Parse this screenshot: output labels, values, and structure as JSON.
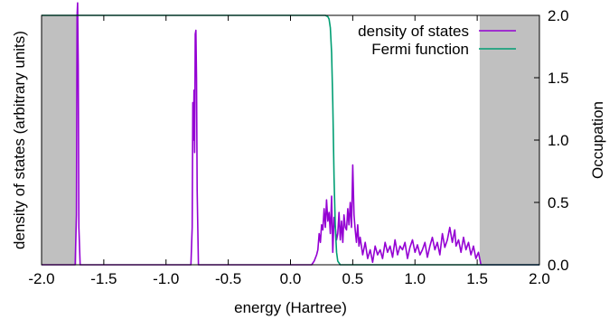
{
  "chart_data": {
    "type": "line",
    "title": "",
    "xlabel": "energy (Hartree)",
    "ylabel_left": "density of states (arbitrary units)",
    "ylabel_right": "Occupation",
    "xlim": [
      -2.0,
      2.0
    ],
    "ylim_right": [
      0.0,
      2.0
    ],
    "x_ticks": [
      "-2.0",
      "-1.5",
      "-1.0",
      "-0.5",
      "0.0",
      "0.5",
      "1.0",
      "1.5",
      "2.0"
    ],
    "y_right_ticks": [
      "0.0",
      "0.5",
      "1.0",
      "1.5",
      "2.0"
    ],
    "legend_position": "top-right",
    "grid": false,
    "shaded_regions": [
      {
        "x0": -2.0,
        "x1": -1.72,
        "color": "#c0c0c0"
      },
      {
        "x0": 1.52,
        "x1": 2.0,
        "color": "#c0c0c0"
      }
    ],
    "series": [
      {
        "name": "density of states",
        "color": "#9400d3",
        "axis": "right",
        "x": [
          -2.0,
          -1.73,
          -1.72,
          -1.715,
          -1.71,
          -1.705,
          -1.7,
          -1.69,
          -0.8,
          -0.79,
          -0.785,
          -0.78,
          -0.775,
          -0.77,
          -0.765,
          -0.76,
          -0.755,
          -0.75,
          -0.74,
          0.17,
          0.19,
          0.21,
          0.22,
          0.23,
          0.24,
          0.25,
          0.26,
          0.27,
          0.28,
          0.29,
          0.3,
          0.31,
          0.32,
          0.33,
          0.34,
          0.35,
          0.36,
          0.37,
          0.38,
          0.39,
          0.4,
          0.41,
          0.42,
          0.43,
          0.44,
          0.45,
          0.46,
          0.47,
          0.48,
          0.49,
          0.5,
          0.51,
          0.52,
          0.53,
          0.54,
          0.55,
          0.56,
          0.58,
          0.6,
          0.62,
          0.64,
          0.66,
          0.68,
          0.7,
          0.72,
          0.74,
          0.76,
          0.78,
          0.8,
          0.82,
          0.84,
          0.86,
          0.88,
          0.9,
          0.92,
          0.94,
          0.96,
          0.98,
          1.0,
          1.02,
          1.04,
          1.06,
          1.08,
          1.1,
          1.12,
          1.14,
          1.16,
          1.18,
          1.2,
          1.22,
          1.24,
          1.26,
          1.28,
          1.3,
          1.32,
          1.33,
          1.35,
          1.37,
          1.39,
          1.41,
          1.43,
          1.45,
          1.47,
          1.49,
          1.51,
          1.53,
          2.0
        ],
        "y": [
          0.0,
          0.0,
          0.4,
          2.0,
          2.1,
          1.6,
          0.3,
          0.0,
          0.0,
          0.3,
          1.3,
          1.0,
          1.4,
          0.9,
          1.85,
          1.88,
          1.5,
          0.6,
          0.0,
          0.0,
          0.03,
          0.08,
          0.12,
          0.25,
          0.18,
          0.32,
          0.28,
          0.45,
          0.3,
          0.52,
          0.35,
          0.42,
          0.25,
          0.55,
          0.1,
          0.38,
          0.3,
          0.2,
          0.25,
          0.42,
          0.2,
          0.35,
          0.18,
          0.4,
          0.3,
          0.28,
          0.45,
          0.32,
          0.5,
          0.3,
          0.8,
          0.4,
          0.28,
          0.18,
          0.32,
          0.15,
          0.22,
          0.08,
          0.18,
          0.05,
          0.12,
          0.02,
          0.15,
          0.08,
          0.12,
          0.05,
          0.18,
          0.1,
          0.15,
          0.06,
          0.2,
          0.08,
          0.15,
          0.12,
          0.18,
          0.05,
          0.14,
          0.2,
          0.1,
          0.16,
          0.08,
          0.12,
          0.18,
          0.06,
          0.15,
          0.22,
          0.12,
          0.18,
          0.08,
          0.25,
          0.14,
          0.2,
          0.3,
          0.18,
          0.28,
          0.15,
          0.2,
          0.1,
          0.22,
          0.12,
          0.18,
          0.08,
          0.15,
          0.05,
          0.1,
          0.0,
          0.0
        ]
      },
      {
        "name": "Fermi function",
        "color": "#009e73",
        "axis": "right",
        "x": [
          -2.0,
          0.28,
          0.3,
          0.31,
          0.32,
          0.33,
          0.34,
          0.35,
          0.36,
          0.37,
          0.38,
          0.4,
          2.0
        ],
        "y": [
          2.0,
          2.0,
          1.99,
          1.97,
          1.9,
          1.7,
          1.3,
          0.7,
          0.3,
          0.1,
          0.03,
          0.0,
          0.0
        ]
      }
    ]
  }
}
